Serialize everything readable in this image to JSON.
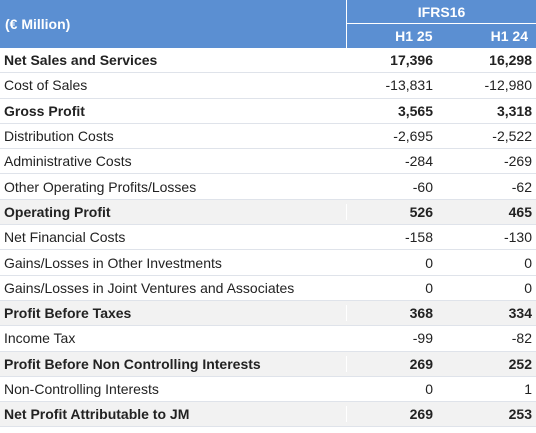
{
  "header": {
    "unit_label": "(€ Million)",
    "group_title": "IFRS16",
    "periods": [
      "H1 25",
      "H1 24"
    ]
  },
  "rows": [
    {
      "label": "Net Sales and Services",
      "h1_25": "17,396",
      "h1_24": "16,298",
      "bold": true
    },
    {
      "label": "Cost of Sales",
      "h1_25": "-13,831",
      "h1_24": "-12,980",
      "bold": false
    },
    {
      "label": "Gross Profit",
      "h1_25": "3,565",
      "h1_24": "3,318",
      "bold": true
    },
    {
      "label": "Distribution Costs",
      "h1_25": "-2,695",
      "h1_24": "-2,522",
      "bold": false
    },
    {
      "label": "Administrative Costs",
      "h1_25": "-284",
      "h1_24": "-269",
      "bold": false
    },
    {
      "label": "Other Operating Profits/Losses",
      "h1_25": "-60",
      "h1_24": "-62",
      "bold": false
    },
    {
      "label": "Operating Profit",
      "h1_25": "526",
      "h1_24": "465",
      "bold": true
    },
    {
      "label": "Net Financial Costs",
      "h1_25": "-158",
      "h1_24": "-130",
      "bold": false
    },
    {
      "label": "Gains/Losses in Other Investments",
      "h1_25": "0",
      "h1_24": "0",
      "bold": false
    },
    {
      "label": "Gains/Losses in Joint Ventures and Associates",
      "h1_25": "0",
      "h1_24": "0",
      "bold": false
    },
    {
      "label": "Profit Before Taxes",
      "h1_25": "368",
      "h1_24": "334",
      "bold": true
    },
    {
      "label": "Income Tax",
      "h1_25": "-99",
      "h1_24": "-82",
      "bold": false
    },
    {
      "label": "Profit Before Non Controlling Interests",
      "h1_25": "269",
      "h1_24": "252",
      "bold": true
    },
    {
      "label": "Non-Controlling Interests",
      "h1_25": "0",
      "h1_24": "1",
      "bold": false
    },
    {
      "label": "Net Profit Attributable to JM",
      "h1_25": "269",
      "h1_24": "253",
      "bold": true
    }
  ]
}
